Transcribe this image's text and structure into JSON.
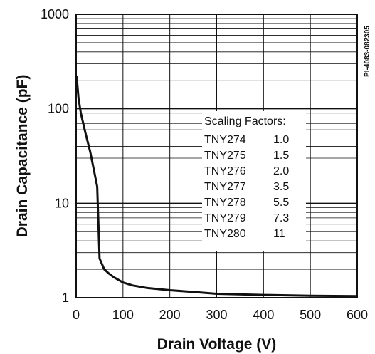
{
  "figure_id": "PI-4083-082305",
  "chart_data": {
    "type": "line",
    "x_scale": "linear",
    "y_scale": "log",
    "xlim": [
      0,
      600
    ],
    "ylim": [
      1,
      1000
    ],
    "x_ticks": [
      "0",
      "100",
      "200",
      "300",
      "400",
      "500",
      "600"
    ],
    "y_ticks": [
      "1",
      "10",
      "100",
      "1000"
    ],
    "xlabel": "Drain Voltage (V)",
    "ylabel": "Drain Capacitance (pF)",
    "grid": true,
    "series": [
      {
        "x": [
          0,
          1,
          5,
          10,
          20,
          30,
          40,
          45,
          50,
          60,
          70,
          80,
          100,
          120,
          150,
          200,
          250,
          300,
          400,
          500,
          600
        ],
        "y": [
          200,
          220,
          130,
          90,
          55,
          35,
          20,
          15,
          2.6,
          2.0,
          1.8,
          1.65,
          1.45,
          1.35,
          1.27,
          1.2,
          1.15,
          1.1,
          1.07,
          1.05,
          1.04
        ]
      }
    ],
    "legend": {
      "title": "Scaling Factors:",
      "placement": "center-right",
      "rows": [
        {
          "part": "TNY274",
          "factor": "1.0"
        },
        {
          "part": "TNY275",
          "factor": "1.5"
        },
        {
          "part": "TNY276",
          "factor": "2.0"
        },
        {
          "part": "TNY277",
          "factor": "3.5"
        },
        {
          "part": "TNY278",
          "factor": "5.5"
        },
        {
          "part": "TNY279",
          "factor": "7.3"
        },
        {
          "part": "TNY280",
          "factor": "11"
        }
      ]
    }
  }
}
